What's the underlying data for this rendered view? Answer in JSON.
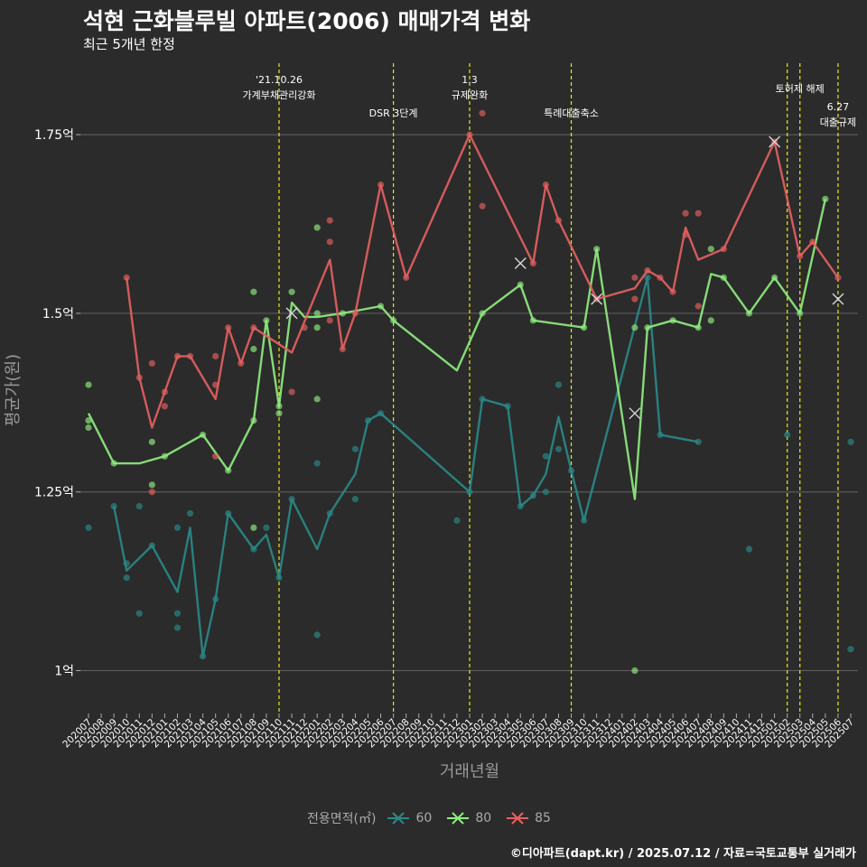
{
  "header": {
    "title": "석현 근화블루빌 아파트(2006) 매매가격 변화",
    "subtitle": "최근 5개년 한정"
  },
  "caption": "©디아파트(dapt.kr) / 2025.07.12 / 자료=국토교통부 실거래가",
  "legend": {
    "title": "전용면적(㎡)",
    "items": [
      {
        "label": "60",
        "color": "#2a8a8a"
      },
      {
        "label": "80",
        "color": "#90ee80"
      },
      {
        "label": "85",
        "color": "#e86060"
      }
    ]
  },
  "chart_data": {
    "type": "line",
    "xlabel": "거래년월",
    "ylabel": "평균가(원)",
    "ylim": [
      0.94,
      1.85
    ],
    "y_ticks": [
      {
        "value": 1.0,
        "label": "1억"
      },
      {
        "value": 1.25,
        "label": "1.25억"
      },
      {
        "value": 1.5,
        "label": "1.5억"
      },
      {
        "value": 1.75,
        "label": "1.75억"
      }
    ],
    "grid": true,
    "legend_position": "bottom",
    "categories": [
      "202007",
      "202008",
      "202009",
      "202010",
      "202011",
      "202012",
      "202101",
      "202102",
      "202103",
      "202104",
      "202105",
      "202106",
      "202107",
      "202108",
      "202109",
      "202110",
      "202111",
      "202112",
      "202201",
      "202202",
      "202203",
      "202204",
      "202205",
      "202206",
      "202207",
      "202208",
      "202209",
      "202210",
      "202211",
      "202212",
      "202301",
      "202302",
      "202303",
      "202304",
      "202305",
      "202306",
      "202307",
      "202308",
      "202309",
      "202310",
      "202311",
      "202312",
      "202401",
      "202402",
      "202403",
      "202404",
      "202405",
      "202406",
      "202407",
      "202408",
      "202409",
      "202410",
      "202411",
      "202412",
      "202501",
      "202502",
      "202503",
      "202504",
      "202505",
      "202506",
      "202507"
    ],
    "events": [
      {
        "x": "202110",
        "label": [
          "'21.10.26",
          "가계부채관리강화"
        ],
        "row": 0
      },
      {
        "x": "202207",
        "label": [
          "DSR 3단계"
        ],
        "row": 1
      },
      {
        "x": "202301",
        "label": [
          "1.3",
          "규제완화"
        ],
        "row": 0
      },
      {
        "x": "202309",
        "label": [
          "특례대출축소"
        ],
        "row": 1
      },
      {
        "x": "202502",
        "label": [],
        "row": 0
      },
      {
        "x": "202503",
        "label": [
          "토허제 해제"
        ],
        "row": 0
      },
      {
        "x": "202506",
        "label": [
          "6.27",
          "대출규제"
        ],
        "row": 2
      }
    ],
    "series": [
      {
        "name": "60",
        "color": "#2a8a8a",
        "line": [
          [
            "202009",
            1.23
          ],
          [
            "202010",
            1.14
          ],
          [
            "202012",
            1.175
          ],
          [
            "202102",
            1.11
          ],
          [
            "202103",
            1.2
          ],
          [
            "202104",
            1.02
          ],
          [
            "202105",
            1.1
          ],
          [
            "202106",
            1.22
          ],
          [
            "202108",
            1.17
          ],
          [
            "202109",
            1.19
          ],
          [
            "202110",
            1.13
          ],
          [
            "202111",
            1.24
          ],
          [
            "202201",
            1.17
          ],
          [
            "202202",
            1.22
          ],
          [
            "202204",
            1.275
          ],
          [
            "202205",
            1.35
          ],
          [
            "202206",
            1.36
          ],
          [
            "202301",
            1.25
          ],
          [
            "202302",
            1.38
          ],
          [
            "202304",
            1.37
          ],
          [
            "202305",
            1.23
          ],
          [
            "202306",
            1.245
          ],
          [
            "202307",
            1.275
          ],
          [
            "202308",
            1.355
          ],
          [
            "202309",
            1.28
          ],
          [
            "202310",
            1.21
          ],
          [
            "202403",
            1.55
          ],
          [
            "202404",
            1.33
          ],
          [
            "202407",
            1.32
          ]
        ],
        "points": [
          [
            "202007",
            1.2
          ],
          [
            "202009",
            1.23
          ],
          [
            "202010",
            1.13
          ],
          [
            "202010",
            1.15
          ],
          [
            "202011",
            1.23
          ],
          [
            "202011",
            1.08
          ],
          [
            "202012",
            1.175
          ],
          [
            "202102",
            1.08
          ],
          [
            "202102",
            1.06
          ],
          [
            "202102",
            1.2
          ],
          [
            "202103",
            1.22
          ],
          [
            "202104",
            1.02
          ],
          [
            "202105",
            1.1
          ],
          [
            "202106",
            1.22
          ],
          [
            "202108",
            1.17
          ],
          [
            "202109",
            1.2
          ],
          [
            "202110",
            1.13
          ],
          [
            "202111",
            1.24
          ],
          [
            "202201",
            1.29
          ],
          [
            "202201",
            1.05
          ],
          [
            "202202",
            1.22
          ],
          [
            "202204",
            1.31
          ],
          [
            "202204",
            1.24
          ],
          [
            "202205",
            1.35
          ],
          [
            "202206",
            1.36
          ],
          [
            "202212",
            1.21
          ],
          [
            "202301",
            1.25
          ],
          [
            "202302",
            1.38
          ],
          [
            "202304",
            1.37
          ],
          [
            "202305",
            1.23
          ],
          [
            "202306",
            1.245
          ],
          [
            "202307",
            1.3
          ],
          [
            "202307",
            1.25
          ],
          [
            "202308",
            1.4
          ],
          [
            "202308",
            1.31
          ],
          [
            "202309",
            1.28
          ],
          [
            "202310",
            1.21
          ],
          [
            "202403",
            1.55
          ],
          [
            "202404",
            1.33
          ],
          [
            "202407",
            1.32
          ],
          [
            "202411",
            1.17
          ],
          [
            "202502",
            1.33
          ],
          [
            "202507",
            1.32
          ],
          [
            "202507",
            1.03
          ]
        ],
        "crosses": []
      },
      {
        "name": "80",
        "color": "#90ee80",
        "line": [
          [
            "202007",
            1.36
          ],
          [
            "202009",
            1.29
          ],
          [
            "202011",
            1.29
          ],
          [
            "202101",
            1.3
          ],
          [
            "202104",
            1.33
          ],
          [
            "202106",
            1.28
          ],
          [
            "202108",
            1.35
          ],
          [
            "202109",
            1.49
          ],
          [
            "202110",
            1.37
          ],
          [
            "202111",
            1.515
          ],
          [
            "202112",
            1.495
          ],
          [
            "202201",
            1.495
          ],
          [
            "202203",
            1.5
          ],
          [
            "202206",
            1.51
          ],
          [
            "202207",
            1.49
          ],
          [
            "202212",
            1.42
          ],
          [
            "202302",
            1.5
          ],
          [
            "202305",
            1.54
          ],
          [
            "202306",
            1.49
          ],
          [
            "202310",
            1.48
          ],
          [
            "202311",
            1.59
          ],
          [
            "202402",
            1.24
          ],
          [
            "202403",
            1.48
          ],
          [
            "202405",
            1.49
          ],
          [
            "202407",
            1.48
          ],
          [
            "202408",
            1.555
          ],
          [
            "202409",
            1.55
          ],
          [
            "202411",
            1.5
          ],
          [
            "202501",
            1.55
          ],
          [
            "202503",
            1.5
          ],
          [
            "202505",
            1.66
          ]
        ],
        "points": [
          [
            "202007",
            1.35
          ],
          [
            "202007",
            1.34
          ],
          [
            "202007",
            1.4
          ],
          [
            "202009",
            1.29
          ],
          [
            "202101",
            1.3
          ],
          [
            "202012",
            1.26
          ],
          [
            "202012",
            1.32
          ],
          [
            "202104",
            1.33
          ],
          [
            "202106",
            1.28
          ],
          [
            "202108",
            1.35
          ],
          [
            "202108",
            1.45
          ],
          [
            "202108",
            1.53
          ],
          [
            "202108",
            1.2
          ],
          [
            "202109",
            1.49
          ],
          [
            "202110",
            1.37
          ],
          [
            "202110",
            1.36
          ],
          [
            "202111",
            1.53
          ],
          [
            "202201",
            1.62
          ],
          [
            "202201",
            1.48
          ],
          [
            "202201",
            1.38
          ],
          [
            "202201",
            1.5
          ],
          [
            "202203",
            1.5
          ],
          [
            "202206",
            1.51
          ],
          [
            "202207",
            1.49
          ],
          [
            "202302",
            1.5
          ],
          [
            "202305",
            1.54
          ],
          [
            "202306",
            1.49
          ],
          [
            "202310",
            1.48
          ],
          [
            "202311",
            1.59
          ],
          [
            "202402",
            1.48
          ],
          [
            "202402",
            1.0
          ],
          [
            "202403",
            1.48
          ],
          [
            "202405",
            1.49
          ],
          [
            "202407",
            1.48
          ],
          [
            "202408",
            1.59
          ],
          [
            "202408",
            1.49
          ],
          [
            "202409",
            1.55
          ],
          [
            "202411",
            1.5
          ],
          [
            "202501",
            1.55
          ],
          [
            "202503",
            1.5
          ],
          [
            "202505",
            1.66
          ]
        ],
        "crosses": [
          [
            "202402",
            1.36
          ]
        ]
      },
      {
        "name": "85",
        "color": "#e86060",
        "line": [
          [
            "202010",
            1.55
          ],
          [
            "202011",
            1.41
          ],
          [
            "202012",
            1.34
          ],
          [
            "202102",
            1.44
          ],
          [
            "202103",
            1.44
          ],
          [
            "202105",
            1.38
          ],
          [
            "202106",
            1.48
          ],
          [
            "202107",
            1.43
          ],
          [
            "202108",
            1.48
          ],
          [
            "202111",
            1.445
          ],
          [
            "202202",
            1.575
          ],
          [
            "202203",
            1.45
          ],
          [
            "202204",
            1.5
          ],
          [
            "202206",
            1.68
          ],
          [
            "202208",
            1.55
          ],
          [
            "202301",
            1.75
          ],
          [
            "202306",
            1.57
          ],
          [
            "202307",
            1.68
          ],
          [
            "202308",
            1.63
          ],
          [
            "202311",
            1.52
          ],
          [
            "202402",
            1.535
          ],
          [
            "202403",
            1.56
          ],
          [
            "202404",
            1.55
          ],
          [
            "202405",
            1.53
          ],
          [
            "202406",
            1.62
          ],
          [
            "202407",
            1.575
          ],
          [
            "202409",
            1.59
          ],
          [
            "202501",
            1.74
          ],
          [
            "202503",
            1.58
          ],
          [
            "202504",
            1.6
          ],
          [
            "202506",
            1.55
          ]
        ],
        "points": [
          [
            "202010",
            1.55
          ],
          [
            "202011",
            1.41
          ],
          [
            "202012",
            1.43
          ],
          [
            "202012",
            1.25
          ],
          [
            "202101",
            1.39
          ],
          [
            "202101",
            1.37
          ],
          [
            "202102",
            1.44
          ],
          [
            "202103",
            1.44
          ],
          [
            "202105",
            1.44
          ],
          [
            "202105",
            1.4
          ],
          [
            "202105",
            1.3
          ],
          [
            "202106",
            1.48
          ],
          [
            "202107",
            1.43
          ],
          [
            "202108",
            1.48
          ],
          [
            "202111",
            1.39
          ],
          [
            "202112",
            1.48
          ],
          [
            "202202",
            1.63
          ],
          [
            "202202",
            1.6
          ],
          [
            "202202",
            1.49
          ],
          [
            "202203",
            1.45
          ],
          [
            "202204",
            1.5
          ],
          [
            "202206",
            1.68
          ],
          [
            "202208",
            1.55
          ],
          [
            "202301",
            1.75
          ],
          [
            "202302",
            1.78
          ],
          [
            "202302",
            1.65
          ],
          [
            "202306",
            1.57
          ],
          [
            "202307",
            1.68
          ],
          [
            "202308",
            1.63
          ],
          [
            "202311",
            1.52
          ],
          [
            "202402",
            1.55
          ],
          [
            "202402",
            1.52
          ],
          [
            "202403",
            1.56
          ],
          [
            "202404",
            1.55
          ],
          [
            "202405",
            1.53
          ],
          [
            "202406",
            1.64
          ],
          [
            "202406",
            1.61
          ],
          [
            "202407",
            1.64
          ],
          [
            "202407",
            1.51
          ],
          [
            "202409",
            1.59
          ],
          [
            "202501",
            1.74
          ],
          [
            "202503",
            1.58
          ],
          [
            "202504",
            1.6
          ],
          [
            "202506",
            1.55
          ]
        ],
        "crosses": [
          [
            "202111",
            1.5
          ],
          [
            "202305",
            1.57
          ],
          [
            "202311",
            1.52
          ],
          [
            "202501",
            1.74
          ],
          [
            "202506",
            1.52
          ]
        ]
      }
    ]
  }
}
